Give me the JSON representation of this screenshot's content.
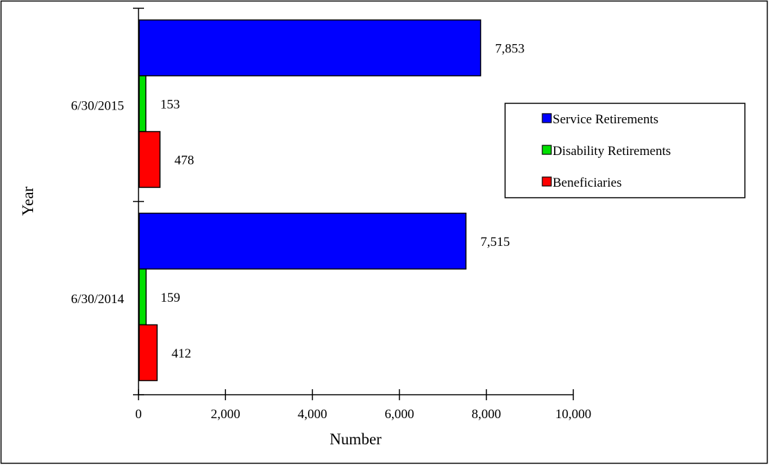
{
  "chart_data": {
    "type": "bar",
    "orientation": "horizontal",
    "categories": [
      "6/30/2015",
      "6/30/2014"
    ],
    "series": [
      {
        "name": "Service Retirements",
        "color": "#0000ff",
        "values": [
          7853,
          7515
        ],
        "labels": [
          "7,853",
          "7,515"
        ]
      },
      {
        "name": "Disability Retirements",
        "color": "#00e000",
        "values": [
          153,
          159
        ],
        "labels": [
          "153",
          "159"
        ]
      },
      {
        "name": "Beneficiaries",
        "color": "#ff0000",
        "values": [
          478,
          412
        ],
        "labels": [
          "478",
          "412"
        ]
      }
    ],
    "xlabel": "Number",
    "ylabel": "Year",
    "xlim": [
      0,
      10000
    ],
    "xticks": [
      0,
      2000,
      4000,
      6000,
      8000,
      10000
    ],
    "xtick_labels": [
      "0",
      "2,000",
      "4,000",
      "6,000",
      "8,000",
      "10,000"
    ],
    "grid": false,
    "legend_position": "right"
  }
}
